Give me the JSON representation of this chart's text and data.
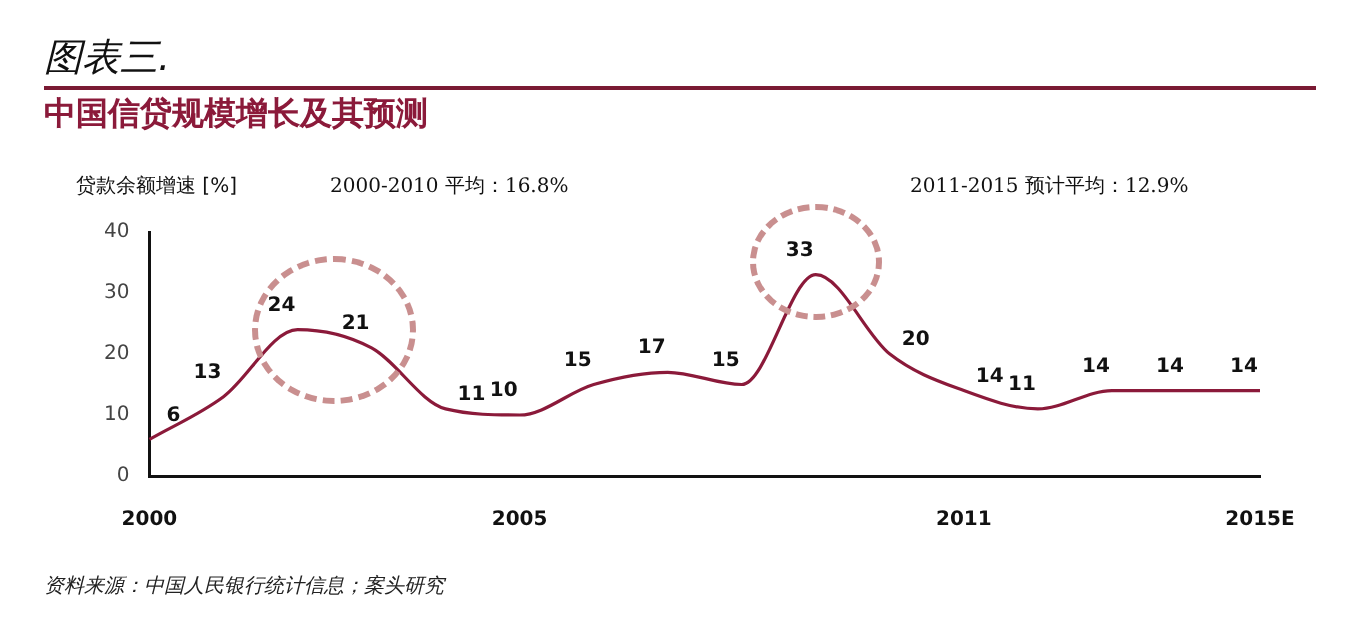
{
  "chart_data": {
    "type": "line",
    "title": "中国信贷规模增长及其预测",
    "ylabel": "贷款余额增速 [%]",
    "annotations": [
      "图表三.",
      "2000-2010 平均：16.8%",
      "2011-2015 预计平均：12.9%",
      "资料来源：中国人民银行统计信息；案头研究"
    ],
    "categories": [
      "2000",
      null,
      null,
      null,
      null,
      "2005",
      null,
      null,
      null,
      null,
      null,
      "2011",
      null,
      null,
      null,
      "2015E"
    ],
    "series": [
      {
        "color": "#8b1a3a",
        "values": [
          6,
          13,
          24,
          21,
          11,
          10,
          15,
          17,
          15,
          33,
          20,
          14,
          11,
          14,
          14,
          14
        ]
      }
    ],
    "ylim": [
      0,
      40
    ],
    "yticks": [
      0,
      10,
      20,
      30,
      40
    ],
    "grid": false,
    "legend": false,
    "data_labels": true,
    "marker": "none",
    "line_style": "solid"
  }
}
